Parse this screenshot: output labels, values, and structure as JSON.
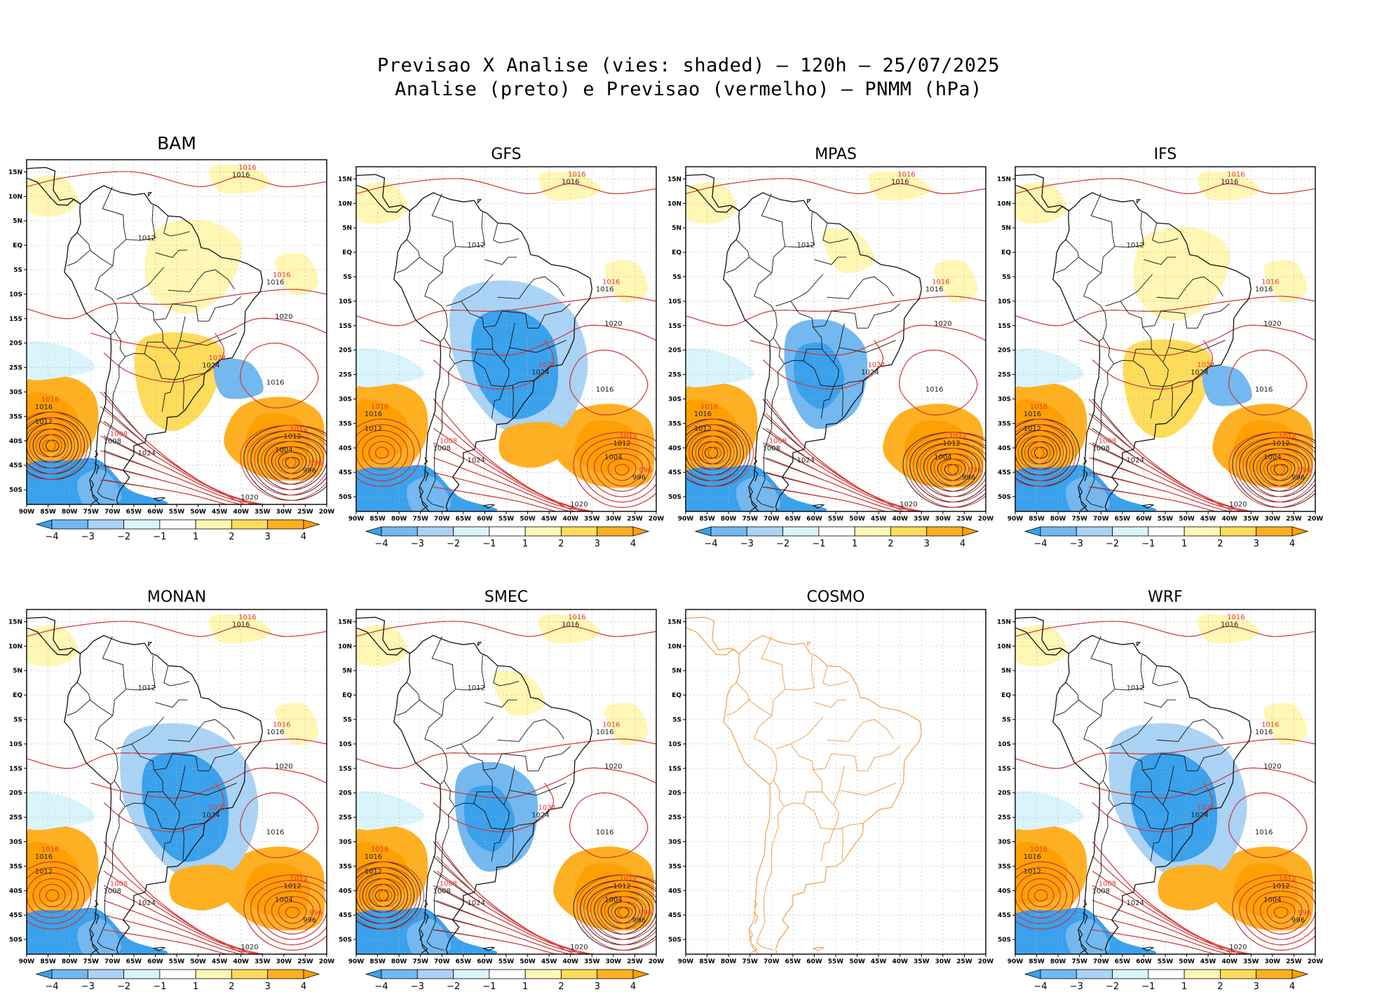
{
  "header": {
    "title_line1": "Previsao X Analise (vies: shaded) – 120h – 25/07/2025",
    "title_line2": "Analise (preto) e Previsao (vermelho) – PNMM (hPa)"
  },
  "axes": {
    "lat_labels": [
      "15N",
      "10N",
      "5N",
      "EQ",
      "5S",
      "10S",
      "15S",
      "20S",
      "25S",
      "30S",
      "35S",
      "40S",
      "45S",
      "50S"
    ],
    "lon_labels": [
      "90W",
      "85W",
      "80W",
      "75W",
      "70W",
      "65W",
      "60W",
      "55W",
      "50W",
      "45W",
      "40W",
      "35W",
      "30W",
      "25W",
      "20W"
    ]
  },
  "colorbar": {
    "labels": [
      "−4",
      "−3",
      "−2",
      "−1",
      "1",
      "2",
      "3",
      "4"
    ],
    "colors": [
      "#3aa1ec",
      "#73b8f0",
      "#aad3f6",
      "#d9f4fb",
      "#ffffff",
      "#fff7b3",
      "#ffdc5a",
      "#ffb020",
      "#ffa000"
    ]
  },
  "colors": {
    "analysis_line": "#222222",
    "forecast_line": "#e23a3a",
    "coast": "#111111",
    "cosmo_coast": "#f0963c",
    "grid": "#b5b5b5"
  },
  "isobar_labels": {
    "l996": "996",
    "l1004": "1004",
    "l1008": "1008",
    "l1012": "1012",
    "l1016": "1016",
    "l1020": "1020",
    "l1024": "1024"
  },
  "panels": [
    {
      "id": "bam",
      "title": "BAM",
      "has_data": true
    },
    {
      "id": "gfs",
      "title": "GFS",
      "has_data": true
    },
    {
      "id": "mpas",
      "title": "MPAS",
      "has_data": true
    },
    {
      "id": "ifs",
      "title": "IFS",
      "has_data": true
    },
    {
      "id": "monan",
      "title": "MONAN",
      "has_data": true
    },
    {
      "id": "smec",
      "title": "SMEC",
      "has_data": true
    },
    {
      "id": "cosmo",
      "title": "COSMO",
      "has_data": false
    },
    {
      "id": "wrf",
      "title": "WRF",
      "has_data": true
    }
  ]
}
